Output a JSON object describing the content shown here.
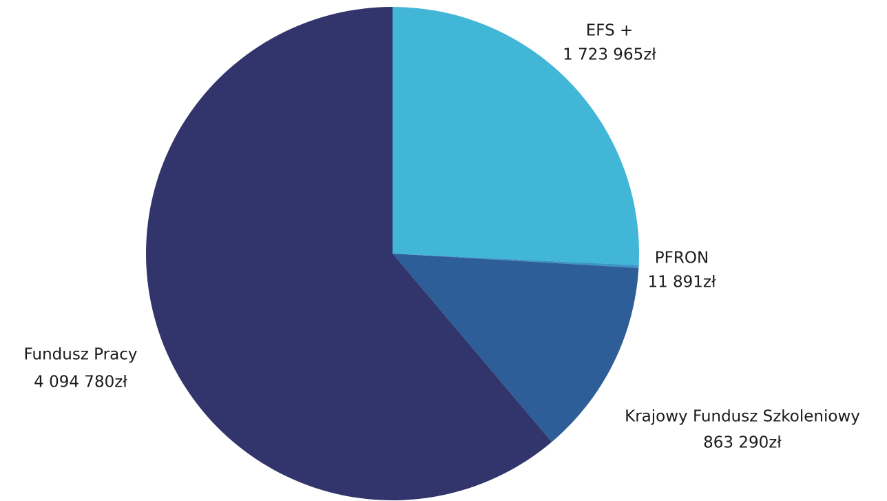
{
  "chart_data": {
    "type": "pie",
    "categories": [
      "EFS +",
      "PFRON",
      "Krajowy Fundusz Szkoleniowy",
      "Fundusz Pracy"
    ],
    "values": [
      1723965,
      11891,
      863290,
      4094780
    ],
    "value_labels": [
      "1 723 965zł",
      "11 891zł",
      "863 290zł",
      "4 094 780zł"
    ],
    "colors": [
      "#41b6d6",
      "#3d94c6",
      "#2e5e97",
      "#32346c"
    ]
  }
}
